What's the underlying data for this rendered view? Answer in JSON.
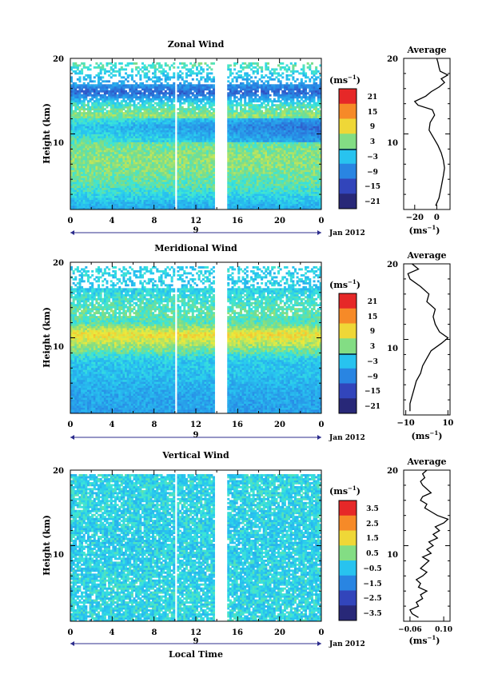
{
  "chart_data": [
    {
      "type": "heatmap",
      "title": "Zonal Wind",
      "ylabel": "Height (km)",
      "ylim": [
        0,
        20
      ],
      "yticks": [
        "20",
        "10"
      ],
      "xlim": [
        0,
        24
      ],
      "xticks": [
        "0",
        "4",
        "8",
        "12",
        "16",
        "20",
        "0"
      ],
      "date_day": "9",
      "date_label": "Jan 2012",
      "colorbar": {
        "unit_base": "(ms",
        "unit_exp": "−1",
        "unit_close": ")",
        "ticks": [
          "21",
          "15",
          "9",
          "3",
          "−3",
          "−9",
          "−15",
          "−21"
        ],
        "range": [
          -24,
          24
        ]
      },
      "data_gaps_hours": [
        [
          10,
          10.25
        ],
        [
          13.75,
          15
        ]
      ],
      "height_profile_kmh": [
        {
          "h": 1,
          "v": -4
        },
        {
          "h": 3,
          "v": 1
        },
        {
          "h": 5,
          "v": 3
        },
        {
          "h": 7,
          "v": 4
        },
        {
          "h": 9,
          "v": 2
        },
        {
          "h": 11,
          "v": -3
        },
        {
          "h": 12.5,
          "v": 4
        },
        {
          "h": 14,
          "v": 0
        },
        {
          "h": 15.5,
          "v": -14
        },
        {
          "h": 17,
          "v": -6
        },
        {
          "h": 19,
          "v": 1
        }
      ],
      "average": {
        "title": "Average",
        "xlabel_base": "(ms",
        "xlabel_exp": "−1",
        "xlabel_close": ")",
        "xlim": [
          -30,
          12
        ],
        "xticks": [
          {
            "v": -20,
            "label": "−20"
          },
          {
            "v": 0,
            "label": "0"
          }
        ],
        "yticks": [
          "20",
          "10"
        ],
        "profile": [
          {
            "h": 0.5,
            "v": -1
          },
          {
            "h": 1.5,
            "v": 2
          },
          {
            "h": 3,
            "v": 4
          },
          {
            "h": 4.5,
            "v": 6
          },
          {
            "h": 5.5,
            "v": 7
          },
          {
            "h": 6.5,
            "v": 6
          },
          {
            "h": 7.5,
            "v": 4
          },
          {
            "h": 8.5,
            "v": 1
          },
          {
            "h": 9.5,
            "v": -3
          },
          {
            "h": 10.5,
            "v": -7
          },
          {
            "h": 11.5,
            "v": -6
          },
          {
            "h": 12.5,
            "v": -2
          },
          {
            "h": 13.2,
            "v": -4
          },
          {
            "h": 13.8,
            "v": -17
          },
          {
            "h": 14.3,
            "v": -20
          },
          {
            "h": 15,
            "v": -10
          },
          {
            "h": 15.6,
            "v": -5
          },
          {
            "h": 16.2,
            "v": 2
          },
          {
            "h": 16.8,
            "v": 7
          },
          {
            "h": 17.3,
            "v": 4
          },
          {
            "h": 17.8,
            "v": 10
          },
          {
            "h": 18.3,
            "v": 3
          },
          {
            "h": 18.8,
            "v": 2
          },
          {
            "h": 19.5,
            "v": 1
          },
          {
            "h": 20,
            "v": 0
          }
        ]
      }
    },
    {
      "type": "heatmap",
      "title": "Meridional Wind",
      "ylabel": "Height (km)",
      "ylim": [
        0,
        20
      ],
      "yticks": [
        "20",
        "10"
      ],
      "xlim": [
        0,
        24
      ],
      "xticks": [
        "0",
        "4",
        "8",
        "12",
        "16",
        "20",
        "0"
      ],
      "date_day": "9",
      "date_label": "Jan 2012",
      "colorbar": {
        "unit_base": "(ms",
        "unit_exp": "−1",
        "unit_close": ")",
        "ticks": [
          "21",
          "15",
          "9",
          "3",
          "−3",
          "−9",
          "−15",
          "−21"
        ],
        "range": [
          -24,
          24
        ]
      },
      "data_gaps_hours": [
        [
          10,
          10.25
        ],
        [
          13.75,
          15
        ]
      ],
      "height_profile_kmh": [
        {
          "h": 1,
          "v": -7
        },
        {
          "h": 3,
          "v": -6
        },
        {
          "h": 5,
          "v": -4
        },
        {
          "h": 7,
          "v": -3
        },
        {
          "h": 9,
          "v": 5
        },
        {
          "h": 10.5,
          "v": 10
        },
        {
          "h": 12,
          "v": 1
        },
        {
          "h": 13.5,
          "v": 2
        },
        {
          "h": 15,
          "v": 0
        },
        {
          "h": 17,
          "v": -3
        },
        {
          "h": 19,
          "v": -2
        }
      ],
      "average": {
        "title": "Average",
        "xlabel_base": "(ms",
        "xlabel_exp": "−1",
        "xlabel_close": ")",
        "xlim": [
          -11,
          11
        ],
        "xticks": [
          {
            "v": -10,
            "label": "−10"
          },
          {
            "v": 10,
            "label": "10"
          }
        ],
        "yticks": [
          "20",
          "10"
        ],
        "profile": [
          {
            "h": 0.5,
            "v": -8
          },
          {
            "h": 1.5,
            "v": -8
          },
          {
            "h": 2.5,
            "v": -7
          },
          {
            "h": 3.5,
            "v": -6
          },
          {
            "h": 4.5,
            "v": -5
          },
          {
            "h": 5.5,
            "v": -3
          },
          {
            "h": 6.5,
            "v": -2
          },
          {
            "h": 7.5,
            "v": 0
          },
          {
            "h": 8.5,
            "v": 2
          },
          {
            "h": 9.5,
            "v": 7
          },
          {
            "h": 10.2,
            "v": 10
          },
          {
            "h": 11,
            "v": 6
          },
          {
            "h": 12,
            "v": 4
          },
          {
            "h": 13,
            "v": 3
          },
          {
            "h": 14,
            "v": 4
          },
          {
            "h": 15,
            "v": 0
          },
          {
            "h": 16,
            "v": 1
          },
          {
            "h": 17,
            "v": -3
          },
          {
            "h": 18,
            "v": -8
          },
          {
            "h": 18.7,
            "v": -9
          },
          {
            "h": 19.3,
            "v": -4
          },
          {
            "h": 20,
            "v": -7
          }
        ]
      }
    },
    {
      "type": "heatmap",
      "title": "Vertical Wind",
      "ylabel": "Height (km)",
      "xlabel": "Local Time",
      "ylim": [
        0,
        20
      ],
      "yticks": [
        "20",
        "10"
      ],
      "xlim": [
        0,
        24
      ],
      "xticks": [
        "0",
        "4",
        "8",
        "12",
        "16",
        "20",
        "0"
      ],
      "date_day": "9",
      "date_label": "Jan 2012",
      "colorbar": {
        "unit_base": "(ms",
        "unit_exp": "−1",
        "unit_close": ")",
        "ticks": [
          "3.5",
          "2.5",
          "1.5",
          "0.5",
          "−0.5",
          "−1.5",
          "−2.5",
          "−3.5"
        ],
        "range": [
          -4,
          4
        ]
      },
      "data_gaps_hours": [
        [
          10,
          10.25
        ],
        [
          13.75,
          15
        ]
      ],
      "height_profile_kmh": [
        {
          "h": 1,
          "v": -0.3
        },
        {
          "h": 5,
          "v": -0.3
        },
        {
          "h": 10,
          "v": -0.4
        },
        {
          "h": 15,
          "v": -0.3
        },
        {
          "h": 19,
          "v": -0.3
        }
      ],
      "average": {
        "title": "Average",
        "xlabel_base": "(ms",
        "xlabel_exp": "−1",
        "xlabel_close": ")",
        "xlim": [
          -0.09,
          0.13
        ],
        "xticks": [
          {
            "v": -0.06,
            "label": "−0.06"
          },
          {
            "v": 0.1,
            "label": "0.10"
          }
        ],
        "yticks": [
          "20",
          "10"
        ],
        "profile": [
          {
            "h": 0.5,
            "v": -0.02
          },
          {
            "h": 1,
            "v": -0.05
          },
          {
            "h": 1.5,
            "v": -0.06
          },
          {
            "h": 2,
            "v": -0.02
          },
          {
            "h": 2.5,
            "v": -0.03
          },
          {
            "h": 3,
            "v": 0.0
          },
          {
            "h": 3.5,
            "v": -0.01
          },
          {
            "h": 4,
            "v": 0.02
          },
          {
            "h": 4.5,
            "v": -0.02
          },
          {
            "h": 5,
            "v": -0.01
          },
          {
            "h": 5.5,
            "v": -0.03
          },
          {
            "h": 6,
            "v": 0.0
          },
          {
            "h": 6.5,
            "v": 0.02
          },
          {
            "h": 7,
            "v": -0.01
          },
          {
            "h": 7.5,
            "v": 0.01
          },
          {
            "h": 8,
            "v": 0.03
          },
          {
            "h": 8.5,
            "v": 0.0
          },
          {
            "h": 9,
            "v": 0.04
          },
          {
            "h": 9.5,
            "v": 0.02
          },
          {
            "h": 10,
            "v": 0.05
          },
          {
            "h": 10.5,
            "v": 0.03
          },
          {
            "h": 11,
            "v": 0.07
          },
          {
            "h": 11.5,
            "v": 0.05
          },
          {
            "h": 12,
            "v": 0.08
          },
          {
            "h": 12.5,
            "v": 0.06
          },
          {
            "h": 13,
            "v": 0.1
          },
          {
            "h": 13.5,
            "v": 0.12
          },
          {
            "h": 14,
            "v": 0.07
          },
          {
            "h": 14.5,
            "v": 0.04
          },
          {
            "h": 15,
            "v": 0.01
          },
          {
            "h": 15.5,
            "v": 0.02
          },
          {
            "h": 16,
            "v": -0.01
          },
          {
            "h": 16.5,
            "v": 0.0
          },
          {
            "h": 17,
            "v": 0.04
          },
          {
            "h": 17.5,
            "v": 0.02
          },
          {
            "h": 18,
            "v": 0.0
          },
          {
            "h": 18.5,
            "v": -0.01
          },
          {
            "h": 19,
            "v": 0.01
          },
          {
            "h": 19.5,
            "v": 0.0
          },
          {
            "h": 20,
            "v": 0.02
          }
        ]
      }
    }
  ]
}
